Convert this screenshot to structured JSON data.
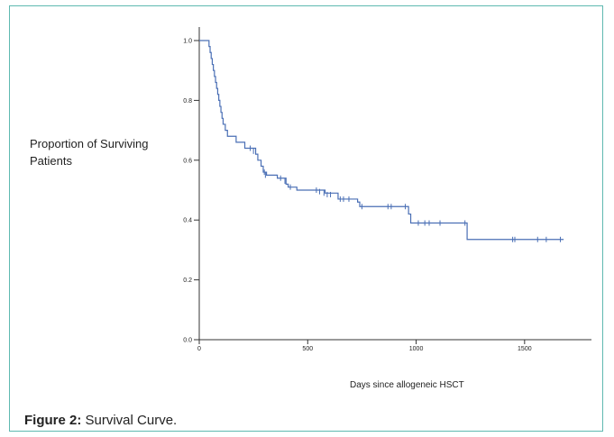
{
  "figure": {
    "caption_label": "Figure 2:",
    "caption_text": " Survival Curve."
  },
  "chart_data": {
    "type": "line",
    "ylabel": "Proportion of Surviving Patients",
    "xlabel": "Days since allogeneic HSCT",
    "xlim": [
      0,
      1800
    ],
    "ylim": [
      0,
      1.0
    ],
    "x_ticks": [
      0,
      500,
      1000,
      1500
    ],
    "y_ticks": [
      0.0,
      0.2,
      0.4,
      0.6,
      0.8,
      1.0
    ],
    "y_tick_labels": [
      "0.0",
      "0.2",
      "0.4",
      "0.6",
      "0.8",
      "1.0"
    ],
    "line_color": "#4a6fb5",
    "series": [
      {
        "steps": [
          [
            0,
            1.0
          ],
          [
            42,
            1.0
          ],
          [
            45,
            0.98
          ],
          [
            50,
            0.96
          ],
          [
            55,
            0.94
          ],
          [
            60,
            0.92
          ],
          [
            65,
            0.9
          ],
          [
            70,
            0.88
          ],
          [
            75,
            0.86
          ],
          [
            80,
            0.84
          ],
          [
            85,
            0.82
          ],
          [
            90,
            0.8
          ],
          [
            95,
            0.78
          ],
          [
            100,
            0.76
          ],
          [
            105,
            0.74
          ],
          [
            110,
            0.72
          ],
          [
            120,
            0.7
          ],
          [
            130,
            0.68
          ],
          [
            170,
            0.66
          ],
          [
            210,
            0.64
          ],
          [
            260,
            0.62
          ],
          [
            270,
            0.6
          ],
          [
            285,
            0.58
          ],
          [
            295,
            0.56
          ],
          [
            310,
            0.55
          ],
          [
            360,
            0.54
          ],
          [
            400,
            0.52
          ],
          [
            410,
            0.51
          ],
          [
            450,
            0.5
          ],
          [
            580,
            0.49
          ],
          [
            640,
            0.47
          ],
          [
            730,
            0.46
          ],
          [
            740,
            0.445
          ],
          [
            965,
            0.42
          ],
          [
            975,
            0.39
          ],
          [
            1235,
            0.335
          ],
          [
            1680,
            0.335
          ]
        ],
        "censored": [
          [
            235,
            0.64
          ],
          [
            250,
            0.63
          ],
          [
            300,
            0.56
          ],
          [
            305,
            0.55
          ],
          [
            375,
            0.54
          ],
          [
            395,
            0.53
          ],
          [
            420,
            0.51
          ],
          [
            540,
            0.5
          ],
          [
            555,
            0.495
          ],
          [
            575,
            0.49
          ],
          [
            590,
            0.485
          ],
          [
            605,
            0.485
          ],
          [
            650,
            0.47
          ],
          [
            665,
            0.47
          ],
          [
            690,
            0.47
          ],
          [
            750,
            0.445
          ],
          [
            870,
            0.445
          ],
          [
            885,
            0.445
          ],
          [
            950,
            0.445
          ],
          [
            1010,
            0.39
          ],
          [
            1040,
            0.39
          ],
          [
            1060,
            0.39
          ],
          [
            1110,
            0.39
          ],
          [
            1225,
            0.39
          ],
          [
            1445,
            0.335
          ],
          [
            1455,
            0.335
          ],
          [
            1560,
            0.335
          ],
          [
            1600,
            0.335
          ],
          [
            1665,
            0.335
          ]
        ]
      }
    ]
  }
}
